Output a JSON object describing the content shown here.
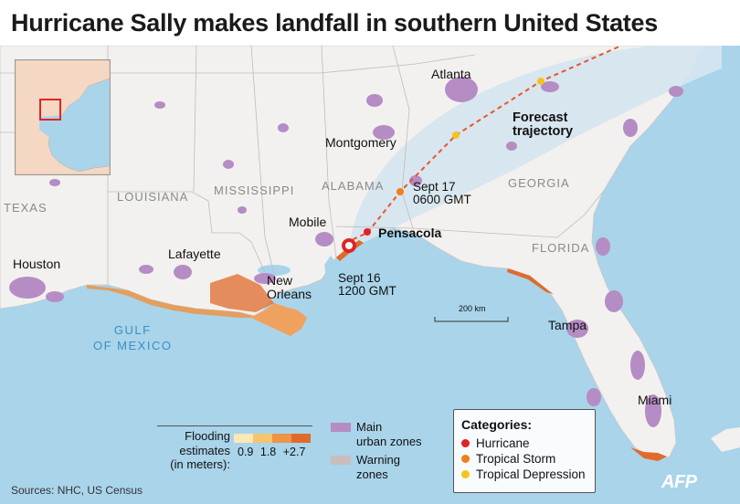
{
  "title": "Hurricane Sally makes landfall in southern United States",
  "states": {
    "texas": "TEXAS",
    "louisiana": "LOUISIANA",
    "mississippi": "MISSISSIPPI",
    "alabama": "ALABAMA",
    "georgia": "GEORGIA",
    "florida": "FLORIDA"
  },
  "cities": {
    "atlanta": "Atlanta",
    "montgomery": "Montgomery",
    "mobile": "Mobile",
    "pensacola": "Pensacola",
    "houston": "Houston",
    "lafayette": "Lafayette",
    "new_orleans_1": "New",
    "new_orleans_2": "Orleans",
    "tampa": "Tampa",
    "miami": "Miami"
  },
  "gulf": {
    "line1": "GULF",
    "line2": "OF MEXICO"
  },
  "forecast": {
    "line1": "Forecast",
    "line2": "trajectory"
  },
  "track_points": {
    "sept16_date": "Sept 16",
    "sept16_time": "1200 GMT",
    "sept17_date": "Sept 17",
    "sept17_time": "0600 GMT"
  },
  "scale_label": "200 km",
  "legend_flood": {
    "label_1": "Flooding",
    "label_2": "estimates",
    "label_3": "(in meters):",
    "ticks": [
      "0.9",
      "1.8",
      "+2.7"
    ],
    "colors": [
      "#fbe8b6",
      "#f6c36e",
      "#ee9444",
      "#e06a2c"
    ]
  },
  "legend_zones": {
    "urban_1": "Main",
    "urban_2": "urban zones",
    "warning_1": "Warning",
    "warning_2": "zones",
    "urban_color": "#b58cc4",
    "warning_color": "#cbbcbc"
  },
  "categories": {
    "title": "Categories:",
    "items": [
      {
        "label": "Hurricane",
        "color": "#e02424"
      },
      {
        "label": "Tropical Storm",
        "color": "#ef7f1a"
      },
      {
        "label": "Tropical Depression",
        "color": "#f6c21c"
      }
    ]
  },
  "sources": "Sources: NHC, US Census",
  "credit": "AFP",
  "colors": {
    "sea": "#a9d4ea",
    "land": "#f2f1ef",
    "cone": "#d9e6ef",
    "track": "#e8552b",
    "hurricane": "#e02424"
  }
}
